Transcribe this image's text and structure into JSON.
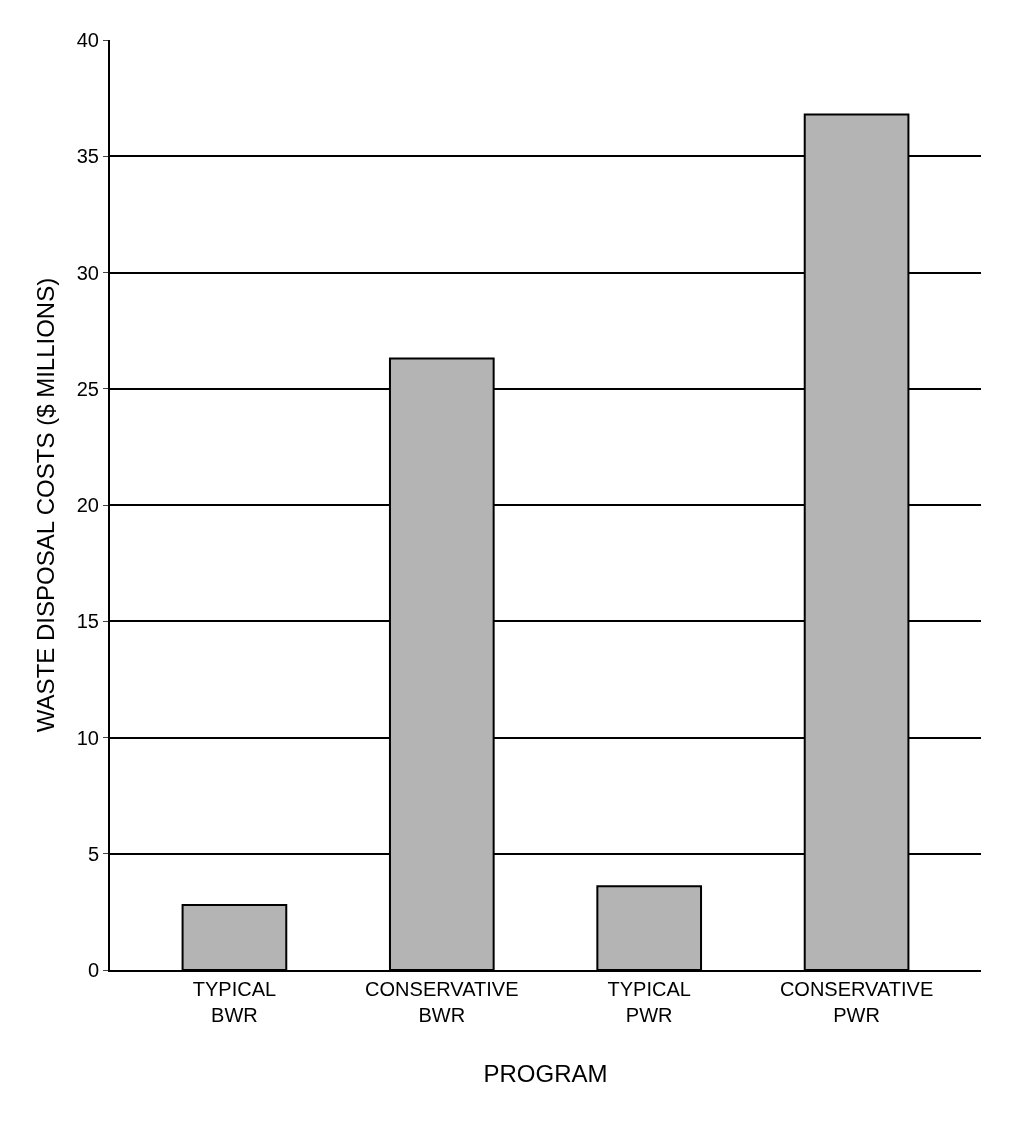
{
  "chart_data": {
    "type": "bar",
    "xlabel": "PROGRAM",
    "ylabel": "WASTE DISPOSAL COSTS ($ MILLIONS)",
    "categories": [
      "TYPICAL\nBWR",
      "CONSERVATIVE\nBWR",
      "TYPICAL\nPWR",
      "CONSERVATIVE\nPWR"
    ],
    "values": [
      2.8,
      26.3,
      3.6,
      36.8
    ],
    "color": "#b4b4b4",
    "ylim": [
      0,
      40
    ],
    "yticks": [
      0,
      5,
      10,
      15,
      20,
      25,
      30,
      35,
      40
    ],
    "grid": "y"
  }
}
